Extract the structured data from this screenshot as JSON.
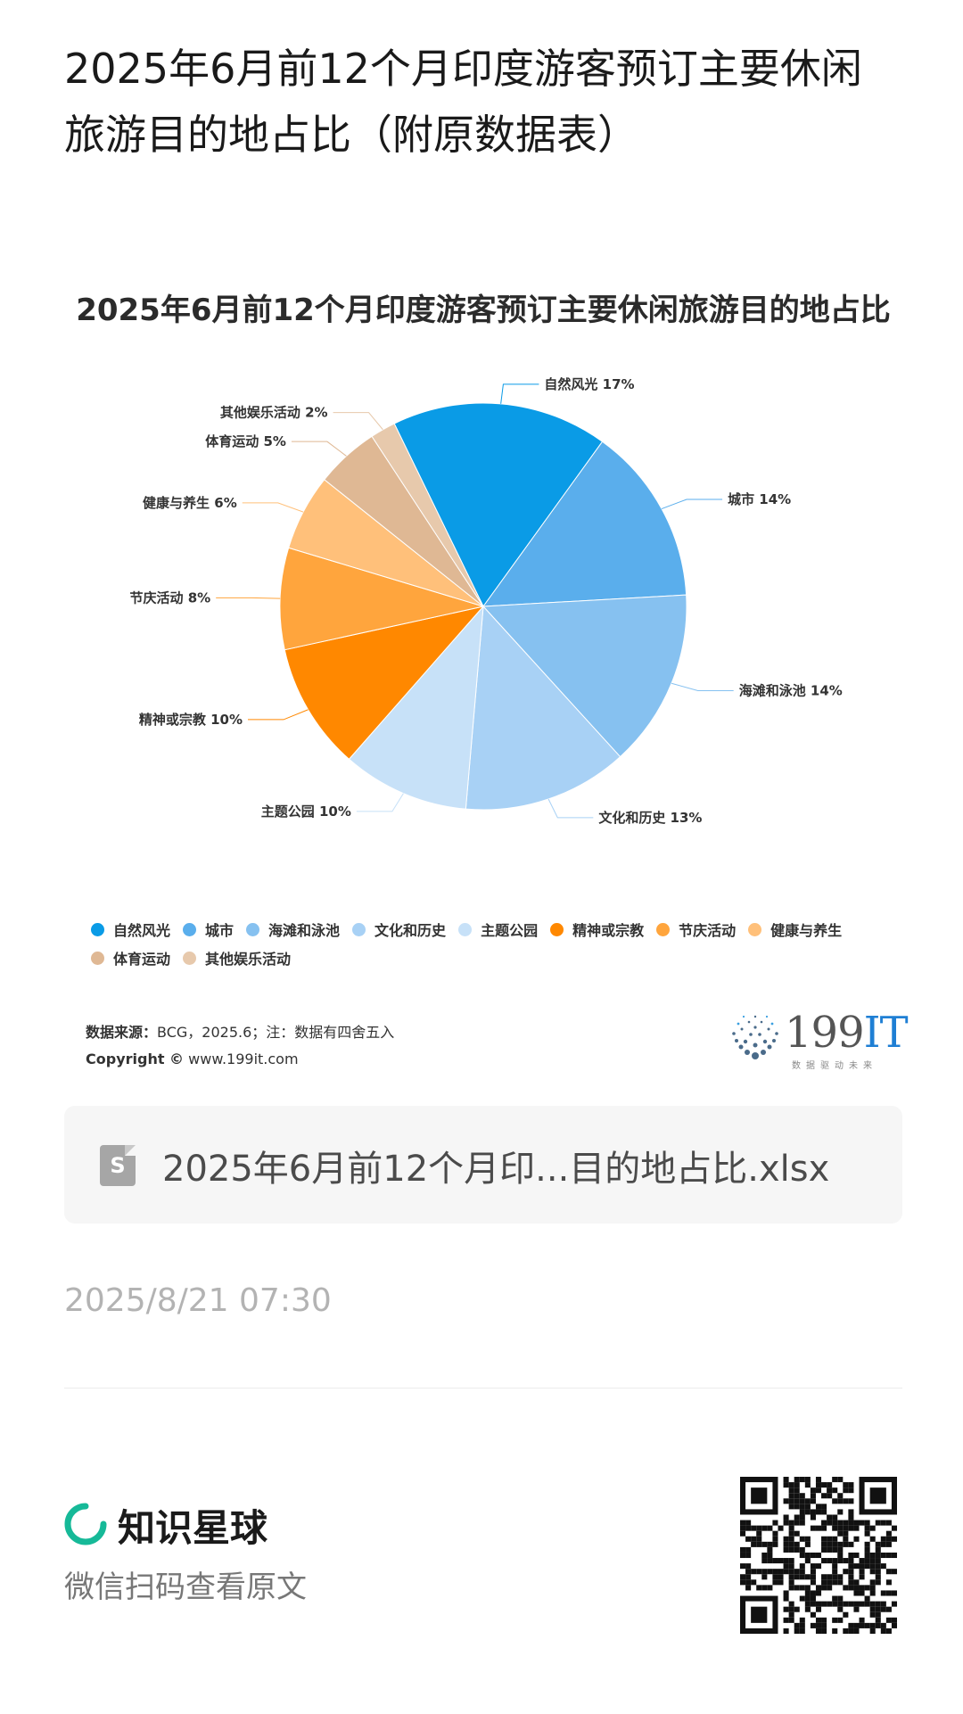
{
  "post": {
    "title": "2025年6月前12个月印度游客预订主要休闲旅游目的地占比（附原数据表）",
    "timestamp": "2025/8/21 07:30"
  },
  "chart_data": {
    "type": "pie",
    "title": "2025年6月前12个月印度游客预订主要休闲旅游目的地占比",
    "categories": [
      "自然风光",
      "城市",
      "海滩和泳池",
      "文化和历史",
      "主题公园",
      "精神或宗教",
      "节庆活动",
      "健康与养生",
      "体育运动",
      "其他娱乐活动"
    ],
    "values": [
      17,
      14,
      14,
      13,
      10,
      10,
      8,
      6,
      5,
      2
    ],
    "labels": [
      "自然风光 17%",
      "城市 14%",
      "海滩和泳池 14%",
      "文化和历史 13%",
      "主题公园 10%",
      "精神或宗教 10%",
      "节庆活动 8%",
      "健康与养生 6%",
      "体育运动 5%",
      "其他娱乐活动 2%"
    ],
    "colors": [
      "#0a9be6",
      "#5aaeec",
      "#86c1f0",
      "#a8d1f5",
      "#c7e1f8",
      "#ff8800",
      "#ffa53d",
      "#ffc07a",
      "#dfb894",
      "#e7c9ac"
    ],
    "legend_position": "bottom"
  },
  "chart_source": {
    "source_label": "数据来源：",
    "source_text": "BCG，2025.6；注：数据有四舍五入",
    "copyright_label": "Copyright ©",
    "copyright_text": "www.199it.com",
    "brand_number": "199",
    "brand_it": "IT",
    "brand_slogan": "数据驱动未来"
  },
  "attachment": {
    "file_name": "2025年6月前12个月印...目的地占比.xlsx",
    "icon": "spreadsheet-file-icon"
  },
  "footer": {
    "platform_name": "知识星球",
    "hint": "微信扫码查看原文",
    "qr": "qr-code"
  }
}
